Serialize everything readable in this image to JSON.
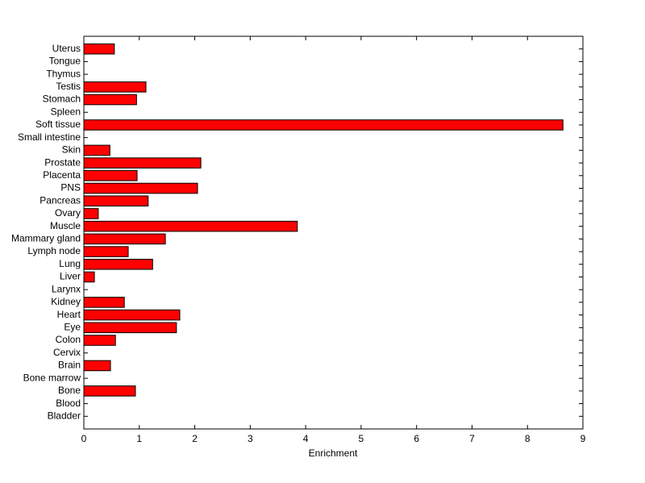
{
  "chart_data": {
    "type": "barh",
    "xlabel": "Enrichment",
    "categories": [
      "Bladder",
      "Blood",
      "Bone",
      "Bone marrow",
      "Brain",
      "Cervix",
      "Colon",
      "Eye",
      "Heart",
      "Kidney",
      "Larynx",
      "Liver",
      "Lung",
      "Lymph node",
      "Mammary gland",
      "Muscle",
      "Ovary",
      "Pancreas",
      "PNS",
      "Placenta",
      "Prostate",
      "Skin",
      "Small intestine",
      "Soft tissue",
      "Spleen",
      "Stomach",
      "Testis",
      "Thymus",
      "Tongue",
      "Uterus"
    ],
    "values": [
      0,
      0,
      0.93,
      0,
      0.48,
      0,
      0.57,
      1.67,
      1.73,
      0.73,
      0,
      0.19,
      1.24,
      0.8,
      1.47,
      3.85,
      0.26,
      1.16,
      2.05,
      0.96,
      2.11,
      0.47,
      0,
      8.64,
      0,
      0.95,
      1.12,
      0,
      0,
      0.55
    ],
    "color": "#ff0000",
    "xlim": [
      0,
      9
    ],
    "xticks": [
      0,
      1,
      2,
      3,
      4,
      5,
      6,
      7,
      8,
      9
    ]
  }
}
